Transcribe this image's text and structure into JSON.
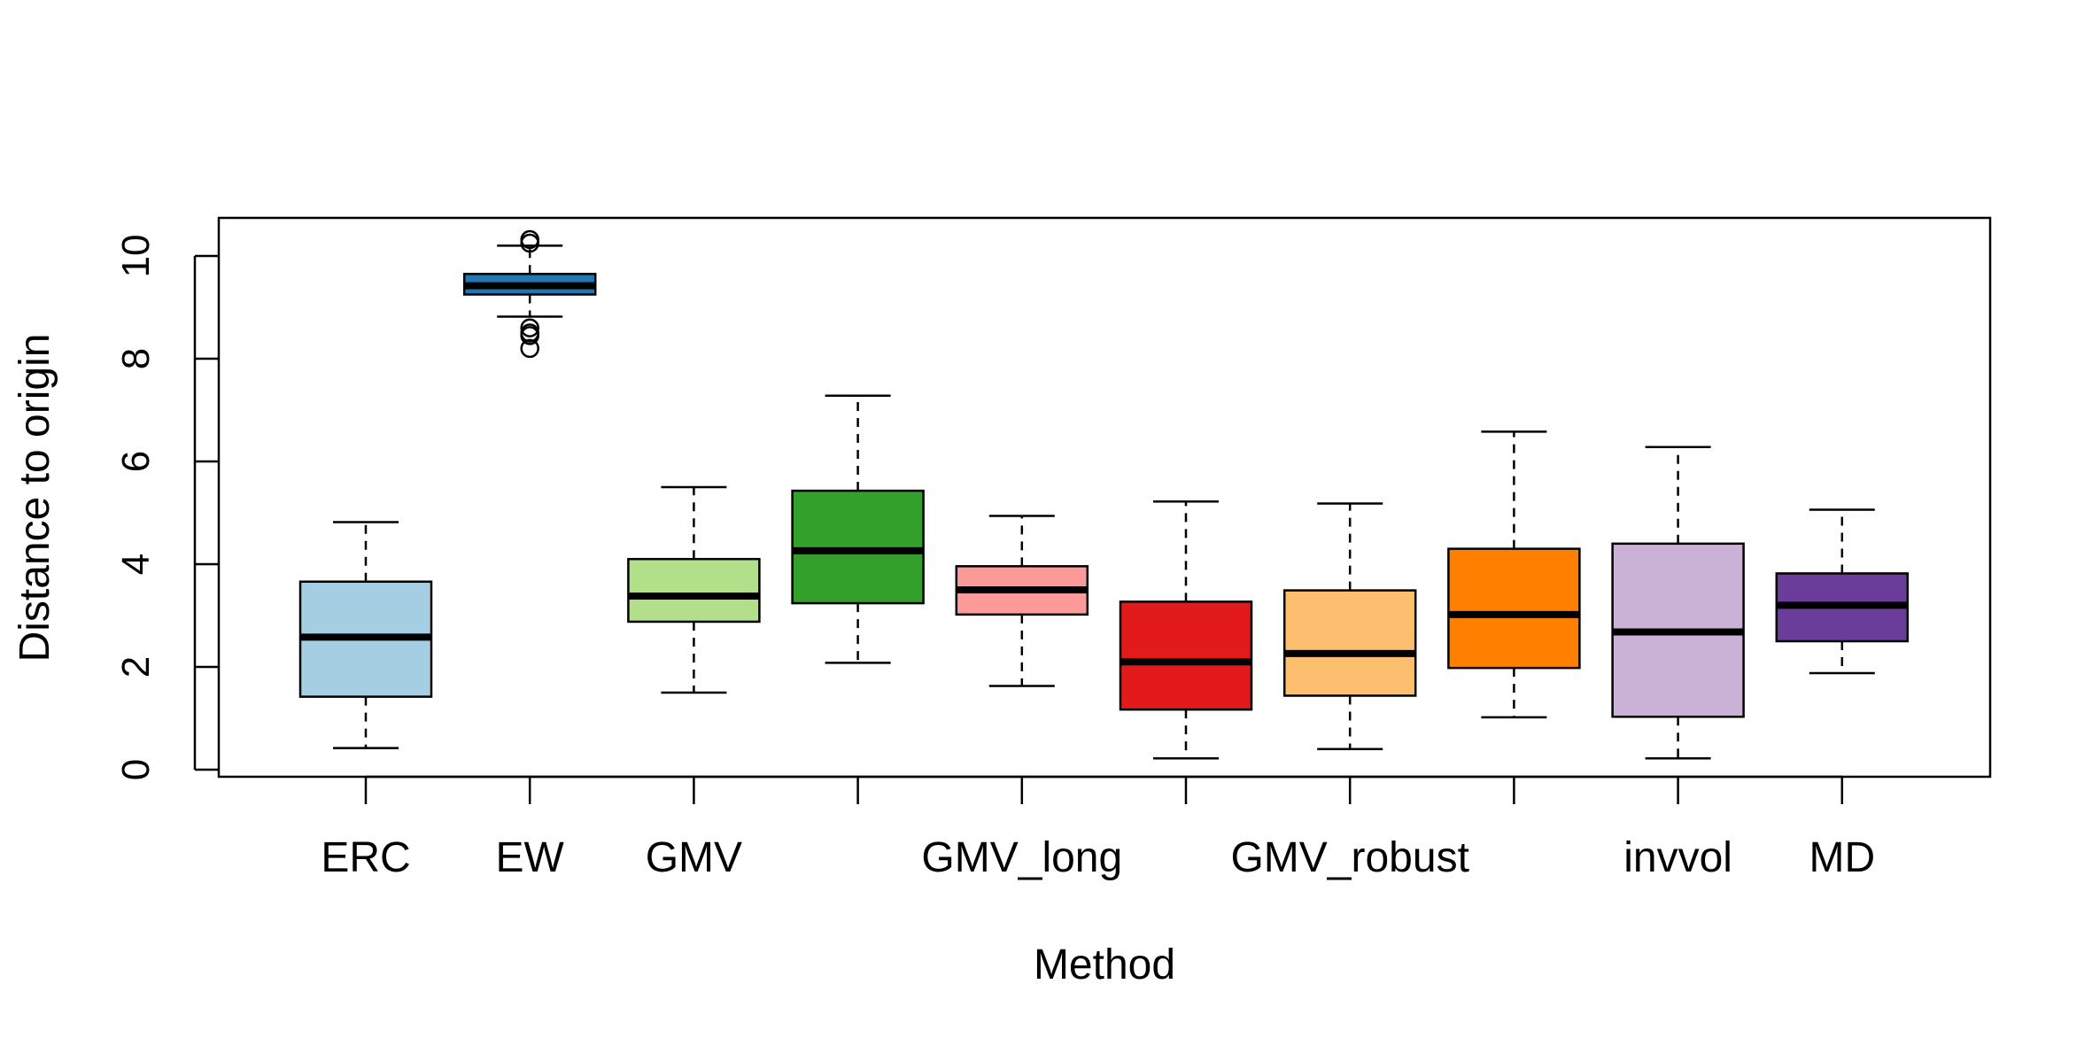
{
  "chart_data": {
    "type": "boxplot",
    "xlabel": "Method",
    "ylabel": "Distance to origin",
    "ylim": [
      0,
      10
    ],
    "yticks": [
      0,
      2,
      4,
      6,
      8,
      10
    ],
    "categories": [
      "ERC",
      "EW",
      "GMV",
      "",
      "GMV_long",
      "",
      "GMV_robust",
      "",
      "invvol",
      "MD"
    ],
    "boxes": [
      {
        "whisker_low": 0.42,
        "q1": 1.42,
        "median": 2.58,
        "q3": 3.66,
        "whisker_high": 4.82,
        "outliers": [],
        "color": "#A6CEE3"
      },
      {
        "whisker_low": 8.82,
        "q1": 9.25,
        "median": 9.42,
        "q3": 9.65,
        "whisker_high": 10.2,
        "outliers": [
          10.32,
          10.25,
          8.6,
          8.5,
          8.45,
          8.2
        ],
        "color": "#1F78B4"
      },
      {
        "whisker_low": 1.5,
        "q1": 2.88,
        "median": 3.38,
        "q3": 4.1,
        "whisker_high": 5.5,
        "outliers": [],
        "color": "#B2DF8A"
      },
      {
        "whisker_low": 2.08,
        "q1": 3.24,
        "median": 4.26,
        "q3": 5.43,
        "whisker_high": 7.28,
        "outliers": [],
        "color": "#33A02C"
      },
      {
        "whisker_low": 1.63,
        "q1": 3.02,
        "median": 3.5,
        "q3": 3.96,
        "whisker_high": 4.94,
        "outliers": [],
        "color": "#FB9A99"
      },
      {
        "whisker_low": 0.22,
        "q1": 1.17,
        "median": 2.1,
        "q3": 3.27,
        "whisker_high": 5.22,
        "outliers": [],
        "color": "#E31A1C"
      },
      {
        "whisker_low": 0.4,
        "q1": 1.44,
        "median": 2.26,
        "q3": 3.49,
        "whisker_high": 5.18,
        "outliers": [],
        "color": "#FDBF6F"
      },
      {
        "whisker_low": 1.02,
        "q1": 1.98,
        "median": 3.02,
        "q3": 4.3,
        "whisker_high": 6.58,
        "outliers": [],
        "color": "#FF7F00"
      },
      {
        "whisker_low": 0.22,
        "q1": 1.03,
        "median": 2.68,
        "q3": 4.4,
        "whisker_high": 6.28,
        "outliers": [],
        "color": "#CAB2D6"
      },
      {
        "whisker_low": 1.88,
        "q1": 2.5,
        "median": 3.2,
        "q3": 3.82,
        "whisker_high": 5.06,
        "outliers": [],
        "color": "#6A3D9A"
      }
    ]
  }
}
